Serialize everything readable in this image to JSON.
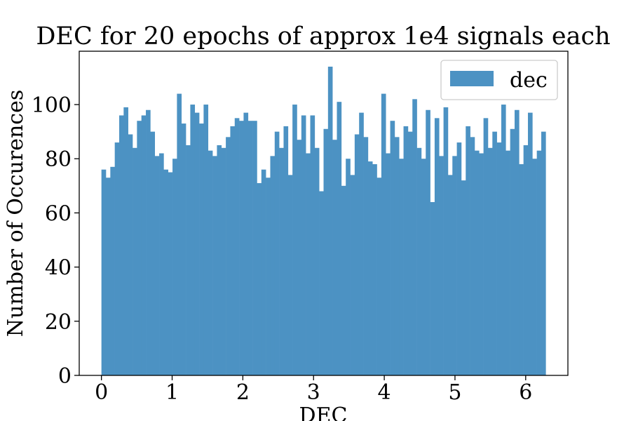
{
  "chart_data": {
    "type": "bar",
    "title": "DEC for 20 epochs of approx 1e4 signals each",
    "xlabel": "DEC",
    "ylabel": "Number of Occurences",
    "xlim": [
      -0.314,
      6.597
    ],
    "ylim": [
      0,
      119.7
    ],
    "xticks": [
      0,
      1,
      2,
      3,
      4,
      5,
      6
    ],
    "yticks": [
      0,
      20,
      40,
      60,
      80,
      100
    ],
    "bin_start": 0,
    "bin_end": 6.283,
    "bar_color": "#4c92c3",
    "grid": false,
    "legend_position": "top-right",
    "series": [
      {
        "name": "dec",
        "values": [
          76,
          73,
          77,
          86,
          96,
          99,
          89,
          84,
          94,
          96,
          98,
          90,
          81,
          82,
          76,
          75,
          80,
          104,
          93,
          85,
          100,
          97,
          93,
          100,
          83,
          81,
          85,
          84,
          88,
          92,
          95,
          94,
          97,
          94,
          94,
          71,
          76,
          73,
          81,
          90,
          84,
          92,
          74,
          100,
          87,
          96,
          82,
          96,
          84,
          68,
          91,
          114,
          87,
          101,
          70,
          80,
          74,
          89,
          97,
          88,
          79,
          78,
          73,
          104,
          82,
          94,
          88,
          80,
          92,
          90,
          102,
          84,
          80,
          98,
          64,
          95,
          81,
          99,
          74,
          81,
          86,
          72,
          92,
          88,
          83,
          82,
          95,
          84,
          90,
          86,
          100,
          83,
          91,
          98,
          78,
          85,
          97,
          80,
          83,
          90
        ]
      }
    ]
  }
}
